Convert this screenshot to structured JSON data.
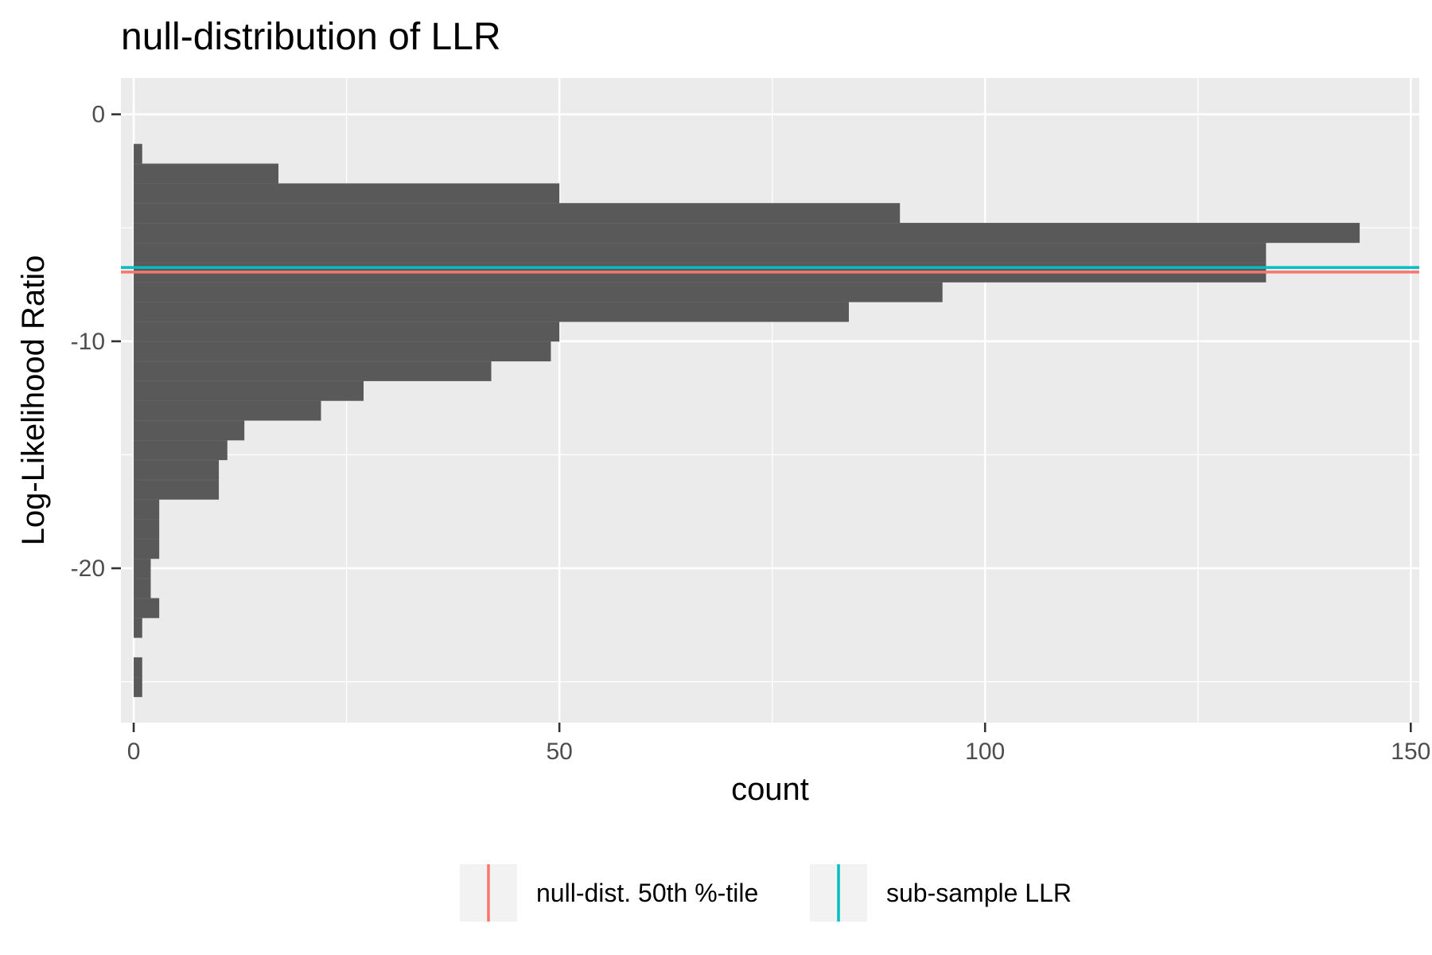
{
  "chart_data": {
    "type": "bar",
    "orientation": "horizontal",
    "title": "null-distribution of LLR",
    "xlabel": "count",
    "ylabel": "Log-Likelihood Ratio",
    "xlim": [
      -1.5,
      151
    ],
    "ylim": [
      -26.8,
      1.6
    ],
    "x_ticks": [
      0,
      50,
      100,
      150
    ],
    "x_tick_labels": [
      "0",
      "50",
      "100",
      "150"
    ],
    "y_ticks": [
      0,
      -10,
      -20
    ],
    "y_tick_labels": [
      "0",
      "-10",
      "-20"
    ],
    "grid": true,
    "bin_width": 0.87,
    "bins": [
      {
        "y": -1.75,
        "count": 1
      },
      {
        "y": -2.62,
        "count": 17
      },
      {
        "y": -3.49,
        "count": 50
      },
      {
        "y": -4.36,
        "count": 90
      },
      {
        "y": -5.23,
        "count": 144
      },
      {
        "y": -6.1,
        "count": 133
      },
      {
        "y": -6.97,
        "count": 133
      },
      {
        "y": -7.84,
        "count": 95
      },
      {
        "y": -8.71,
        "count": 84
      },
      {
        "y": -9.58,
        "count": 50
      },
      {
        "y": -10.45,
        "count": 49
      },
      {
        "y": -11.32,
        "count": 42
      },
      {
        "y": -12.19,
        "count": 27
      },
      {
        "y": -13.06,
        "count": 22
      },
      {
        "y": -13.93,
        "count": 13
      },
      {
        "y": -14.8,
        "count": 11
      },
      {
        "y": -15.67,
        "count": 10
      },
      {
        "y": -16.54,
        "count": 10
      },
      {
        "y": -17.41,
        "count": 3
      },
      {
        "y": -18.28,
        "count": 3
      },
      {
        "y": -19.15,
        "count": 3
      },
      {
        "y": -20.02,
        "count": 2
      },
      {
        "y": -20.89,
        "count": 2
      },
      {
        "y": -21.76,
        "count": 3
      },
      {
        "y": -22.63,
        "count": 1
      },
      {
        "y": -23.5,
        "count": 0
      },
      {
        "y": -24.37,
        "count": 1
      },
      {
        "y": -25.24,
        "count": 1
      }
    ],
    "reference_lines": [
      {
        "name": "null-dist. 50th %-tile",
        "y": -6.95,
        "color": "#F8766D"
      },
      {
        "name": "sub-sample LLR",
        "y": -6.75,
        "color": "#00BFC4"
      }
    ],
    "legend_position": "bottom",
    "bar_color": "#595959",
    "panel_color": "#EBEBEB"
  }
}
